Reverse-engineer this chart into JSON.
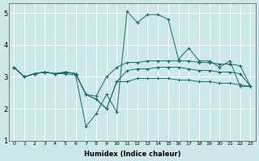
{
  "xlabel": "Humidex (Indice chaleur)",
  "ylabel": "",
  "xlim": [
    -0.5,
    23.5
  ],
  "ylim": [
    1,
    5.3
  ],
  "yticks": [
    1,
    2,
    3,
    4,
    5
  ],
  "xticks": [
    0,
    1,
    2,
    3,
    4,
    5,
    6,
    7,
    8,
    9,
    10,
    11,
    12,
    13,
    14,
    15,
    16,
    17,
    18,
    19,
    20,
    21,
    22,
    23
  ],
  "bg_color": "#cce8e8",
  "grid_color": "#ffffff",
  "line_color": "#1a6b6b",
  "lines": [
    [
      3.3,
      3.0,
      3.1,
      3.15,
      3.1,
      3.1,
      3.05,
      1.45,
      1.85,
      2.45,
      1.9,
      5.05,
      4.7,
      4.95,
      4.95,
      4.8,
      3.55,
      3.9,
      3.5,
      3.5,
      3.3,
      3.5,
      2.7,
      2.7
    ],
    [
      3.3,
      3.0,
      3.1,
      3.15,
      3.1,
      3.15,
      3.1,
      2.45,
      2.4,
      3.0,
      3.3,
      3.45,
      3.45,
      3.5,
      3.5,
      3.5,
      3.5,
      3.5,
      3.45,
      3.45,
      3.4,
      3.4,
      3.35,
      2.7
    ],
    [
      3.3,
      3.0,
      3.1,
      3.15,
      3.1,
      3.15,
      3.1,
      2.45,
      2.3,
      2.0,
      2.85,
      3.2,
      3.25,
      3.25,
      3.3,
      3.3,
      3.3,
      3.25,
      3.2,
      3.2,
      3.15,
      3.15,
      3.1,
      2.7
    ],
    [
      3.3,
      3.0,
      3.1,
      3.15,
      3.1,
      3.15,
      3.1,
      2.45,
      2.3,
      2.0,
      2.85,
      2.85,
      2.95,
      2.95,
      2.95,
      2.95,
      2.9,
      2.9,
      2.85,
      2.85,
      2.8,
      2.8,
      2.75,
      2.7
    ]
  ]
}
